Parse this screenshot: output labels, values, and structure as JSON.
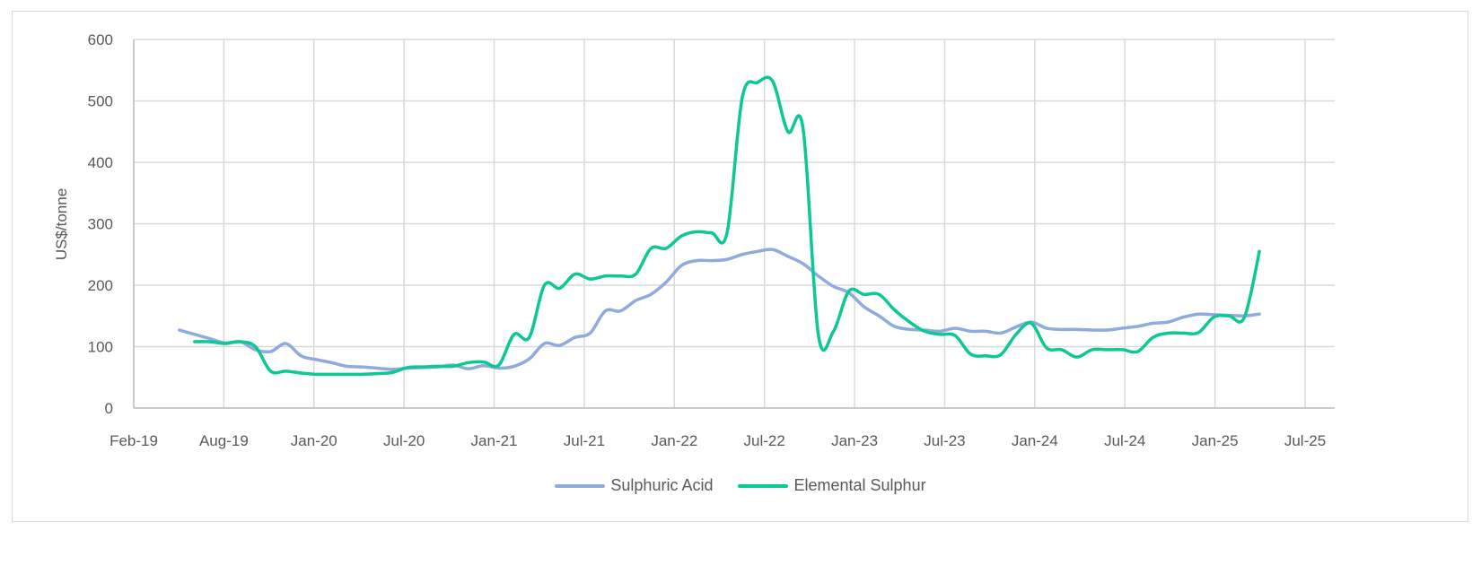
{
  "chart_data": {
    "type": "line",
    "title": "",
    "xlabel": "",
    "ylabel": "US$/tonne",
    "ylim": [
      0,
      600
    ],
    "yticks": [
      "0",
      "100",
      "200",
      "300",
      "400",
      "500",
      "600"
    ],
    "xticks": [
      "Feb-19",
      "Aug-19",
      "Jan-20",
      "Jul-20",
      "Jan-21",
      "Jul-21",
      "Jan-22",
      "Jul-22",
      "Jan-23",
      "Jul-23",
      "Jan-24",
      "Jul-24",
      "Jan-25",
      "Jul-25"
    ],
    "xlim": [
      "2019-02",
      "2025-07"
    ],
    "grid": true,
    "legend_position": "bottom",
    "series": [
      {
        "name": "Sulphuric Acid",
        "color": "#8FAADC",
        "start": "2019-05",
        "values": [
          127,
          120,
          113,
          106,
          108,
          95,
          92,
          105,
          85,
          79,
          74,
          68,
          67,
          65,
          63,
          65,
          66,
          67,
          70,
          64,
          69,
          65,
          68,
          80,
          105,
          102,
          115,
          122,
          158,
          158,
          175,
          185,
          205,
          232,
          240,
          240,
          242,
          250,
          255,
          258,
          247,
          235,
          215,
          198,
          188,
          165,
          150,
          133,
          128,
          127,
          125,
          130,
          125,
          125,
          122,
          132,
          140,
          130,
          128,
          128,
          127,
          127,
          130,
          133,
          138,
          140,
          148,
          153,
          152,
          151,
          150,
          153
        ]
      },
      {
        "name": "Elemental Sulphur",
        "color": "#0CC893",
        "start": "2019-06",
        "values": [
          108,
          108,
          105,
          108,
          100,
          60,
          60,
          57,
          55,
          55,
          55,
          55,
          56,
          58,
          66,
          67,
          68,
          68,
          74,
          75,
          70,
          120,
          115,
          200,
          195,
          218,
          210,
          215,
          215,
          218,
          260,
          260,
          280,
          287,
          285,
          285,
          505,
          530,
          532,
          450,
          455,
          120,
          125,
          190,
          185,
          185,
          160,
          140,
          125,
          120,
          118,
          88,
          85,
          87,
          120,
          138,
          98,
          95,
          83,
          95,
          95,
          95,
          92,
          115,
          122,
          122,
          123,
          148,
          150,
          147,
          255
        ]
      }
    ]
  }
}
